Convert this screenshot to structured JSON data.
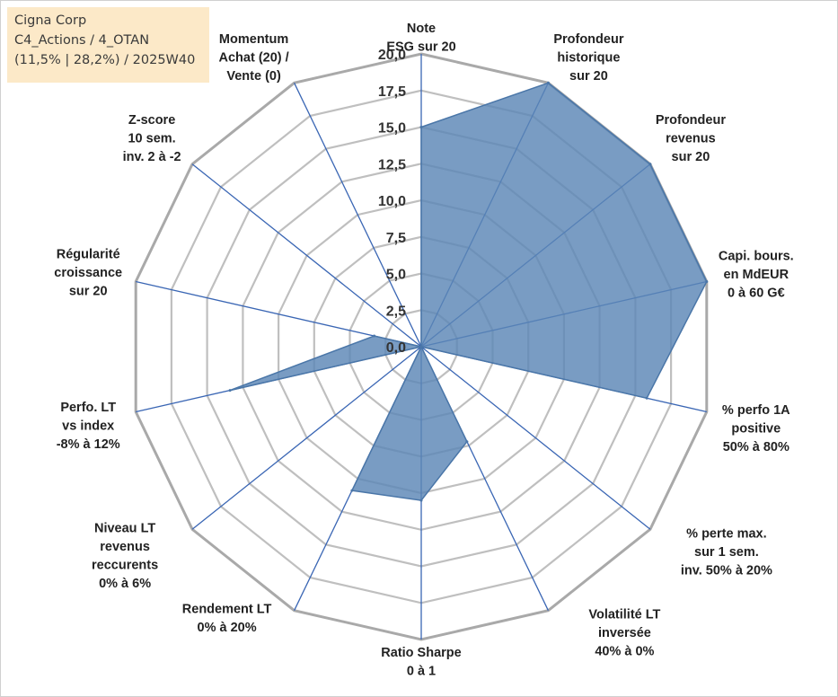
{
  "info_box": {
    "company": "Cigna Corp",
    "portfolio": "C4_Actions / 4_OTAN",
    "stats": "(11,5% | 28,2%) / 2025W40"
  },
  "colors": {
    "fill": "#5b86b6",
    "spoke": "#3a66b4",
    "grid": "#bfbfbf",
    "grid_outer": "#a9a9a9",
    "info_bg": "#fce9c8"
  },
  "chart_data": {
    "type": "radar",
    "rmin": 0,
    "rmax": 20,
    "ticks": [
      "0,0",
      "2,5",
      "5,0",
      "7,5",
      "10,0",
      "12,5",
      "15,0",
      "17,5",
      "20,0"
    ],
    "axes": [
      {
        "label": [
          "Note",
          "ESG sur 20"
        ],
        "value": 15
      },
      {
        "label": [
          "Profondeur",
          "historique",
          "sur 20"
        ],
        "value": 20
      },
      {
        "label": [
          "Profondeur",
          "revenus",
          "sur 20"
        ],
        "value": 20
      },
      {
        "label": [
          "Capi. bours.",
          "en MdEUR",
          "0 à 60 G€"
        ],
        "value": 20
      },
      {
        "label": [
          "% perfo 1A",
          "positive",
          "50% à 80%"
        ],
        "value": 15.8
      },
      {
        "label": [
          "% perte max.",
          "sur 1 sem.",
          "inv. 50% à 20%"
        ],
        "value": 0
      },
      {
        "label": [
          "Volatilité LT",
          "inversée",
          "40% à 0%"
        ],
        "value": 7.2
      },
      {
        "label": [
          "Ratio Sharpe",
          "0 à 1"
        ],
        "value": 10.5
      },
      {
        "label": [
          "Rendement LT",
          "0% à 20%"
        ],
        "value": 10.9
      },
      {
        "label": [
          "Niveau LT",
          "revenus",
          "reccurents",
          "0% à 6%"
        ],
        "value": 0
      },
      {
        "label": [
          "Perfo. LT",
          "vs index",
          "-8% à 12%"
        ],
        "value": 13.4
      },
      {
        "label": [
          "Régularité",
          "croissance",
          "sur 20"
        ],
        "value": 3.3
      },
      {
        "label": [
          "Z-score",
          "10 sem.",
          "inv. 2 à -2"
        ],
        "value": 0
      },
      {
        "label": [
          "Momentum",
          "Achat (20) /",
          "Vente (0)"
        ],
        "value": 0
      }
    ]
  }
}
